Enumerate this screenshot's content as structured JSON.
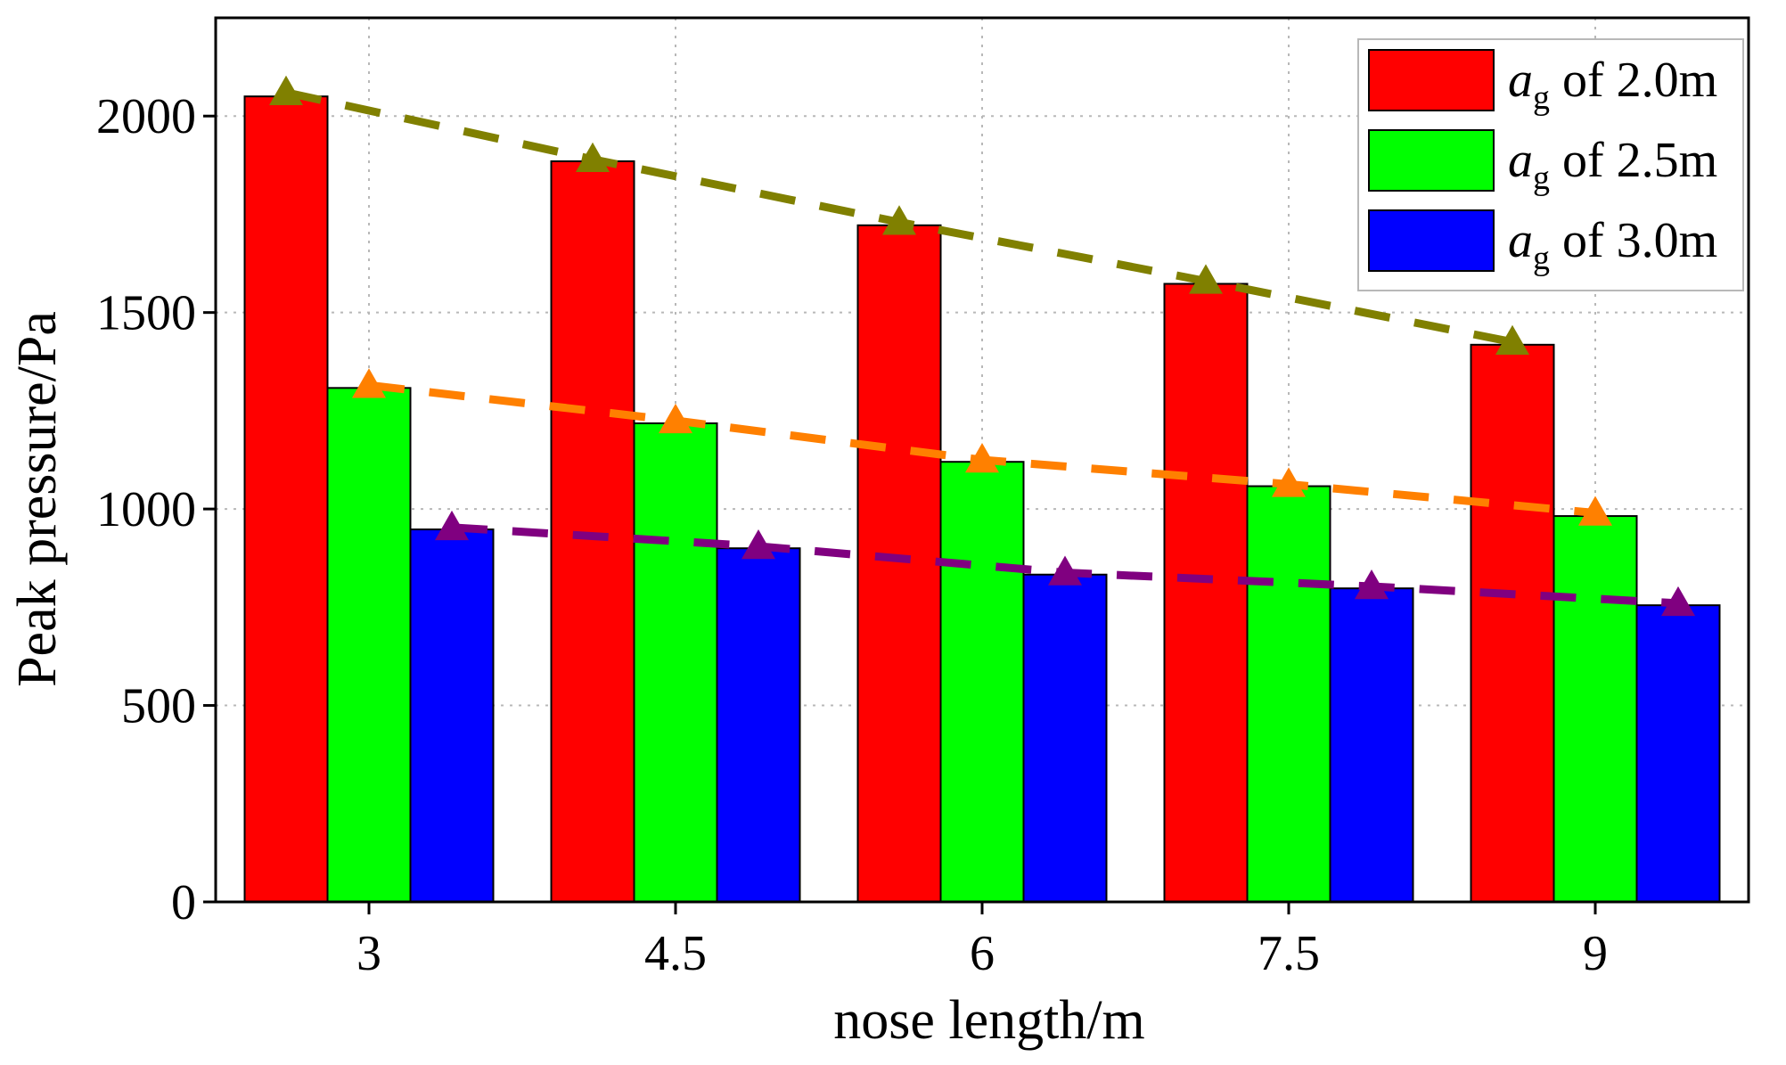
{
  "chart_data": {
    "type": "bar",
    "xlabel": "nose length/m",
    "ylabel": "Peak pressure/Pa",
    "categories": [
      "3",
      "4.5",
      "6",
      "7.5",
      "9"
    ],
    "ylim": [
      0,
      2250
    ],
    "yticks": [
      0,
      500,
      1000,
      1500,
      2000
    ],
    "grid": "dotted",
    "legend_position": "top-right",
    "series": [
      {
        "name": "a_g of 2.0m",
        "legend_symbol": "a",
        "legend_subscript": "g",
        "legend_rest": " of 2.0m",
        "color": "#ff0000",
        "values": [
          2050,
          1885,
          1722,
          1573,
          1418
        ]
      },
      {
        "name": "a_g of 2.5m",
        "legend_symbol": "a",
        "legend_subscript": "g",
        "legend_rest": " of 2.5m",
        "color": "#00ff00",
        "values": [
          1308,
          1218,
          1120,
          1058,
          982
        ]
      },
      {
        "name": "a_g of 3.0m",
        "legend_symbol": "a",
        "legend_subscript": "g",
        "legend_rest": " of 3.0m",
        "color": "#0000ff",
        "values": [
          948,
          900,
          833,
          798,
          755
        ]
      }
    ],
    "trend_lines": [
      {
        "series": "a_g of 2.0m",
        "color": "#808000",
        "marker": "triangle",
        "values": [
          2060,
          1890,
          1730,
          1580,
          1425
        ]
      },
      {
        "series": "a_g of 2.5m",
        "color": "#ff8000",
        "marker": "triangle",
        "values": [
          1315,
          1225,
          1125,
          1063,
          990
        ]
      },
      {
        "series": "a_g of 3.0m",
        "color": "#800080",
        "marker": "triangle",
        "values": [
          953,
          905,
          838,
          803,
          760
        ]
      }
    ]
  }
}
